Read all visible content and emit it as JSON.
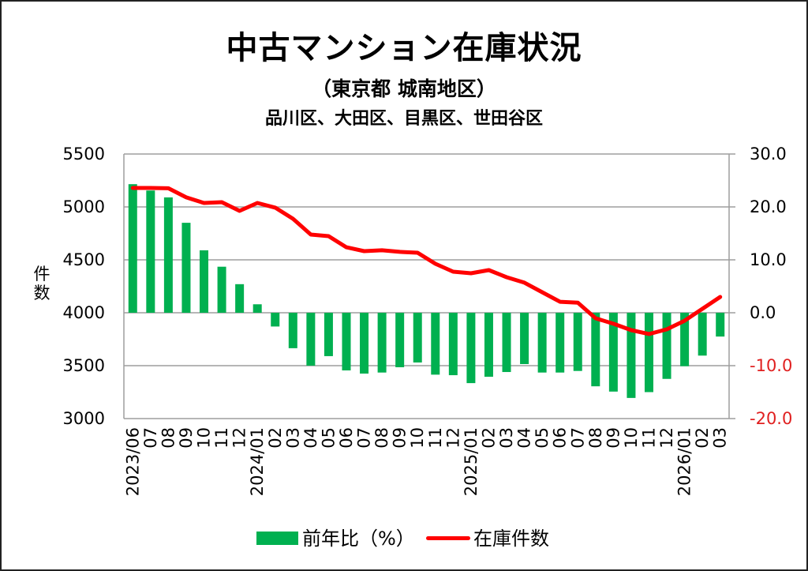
{
  "colors": {
    "bar": "#00b050",
    "line": "#ff0000",
    "grid": "#9e9e9e",
    "negative_tick": "#e02020",
    "text": "#000000"
  },
  "chart_data": {
    "type": "bar+line",
    "title": "中古マンション在庫状況",
    "subtitle": "（東京都 城南地区）",
    "subtitle2": "品川区、大田区、目黒区、世田谷区",
    "ylabel_left": "件数",
    "ylim_left": [
      3000,
      5500
    ],
    "yticks_left": [
      "5500",
      "5000",
      "4500",
      "4000",
      "3500",
      "3000"
    ],
    "ylim_right": [
      -20,
      30
    ],
    "yticks_right": [
      "30.0",
      "20.0",
      "10.0",
      "0.0",
      "-10.0",
      "-20.0"
    ],
    "grid": true,
    "legend_position": "bottom",
    "categories": [
      "2023/06",
      "07",
      "08",
      "09",
      "10",
      "11",
      "12",
      "2024/01",
      "02",
      "03",
      "04",
      "05",
      "06",
      "07",
      "08",
      "09",
      "10",
      "11",
      "12",
      "2025/01",
      "02",
      "03",
      "04",
      "05",
      "06",
      "07",
      "08",
      "09",
      "10",
      "11",
      "12",
      "2026/01",
      "02",
      "03"
    ],
    "series": [
      {
        "name": "前年比（%）",
        "type": "bar",
        "axis": "right",
        "values": [
          24.3,
          23.1,
          21.8,
          17.0,
          11.8,
          8.7,
          5.4,
          1.6,
          -2.6,
          -6.7,
          -10.0,
          -8.2,
          -10.9,
          -11.5,
          -11.3,
          -10.3,
          -9.4,
          -11.7,
          -11.8,
          -13.3,
          -12.1,
          -11.2,
          -9.7,
          -11.3,
          -11.3,
          -11.0,
          -13.9,
          -14.9,
          -16.1,
          -15.0,
          -12.5,
          -10.1,
          -8.1,
          -4.5
        ]
      },
      {
        "name": "在庫件数",
        "type": "line",
        "axis": "left",
        "values": [
          5179,
          5179,
          5176,
          5090,
          5037,
          5045,
          4963,
          5037,
          4993,
          4888,
          4739,
          4724,
          4619,
          4582,
          4590,
          4575,
          4567,
          4463,
          4388,
          4373,
          4403,
          4336,
          4284,
          4194,
          4104,
          4095,
          3948,
          3896,
          3836,
          3799,
          3843,
          3925,
          4037,
          4149
        ]
      }
    ]
  }
}
